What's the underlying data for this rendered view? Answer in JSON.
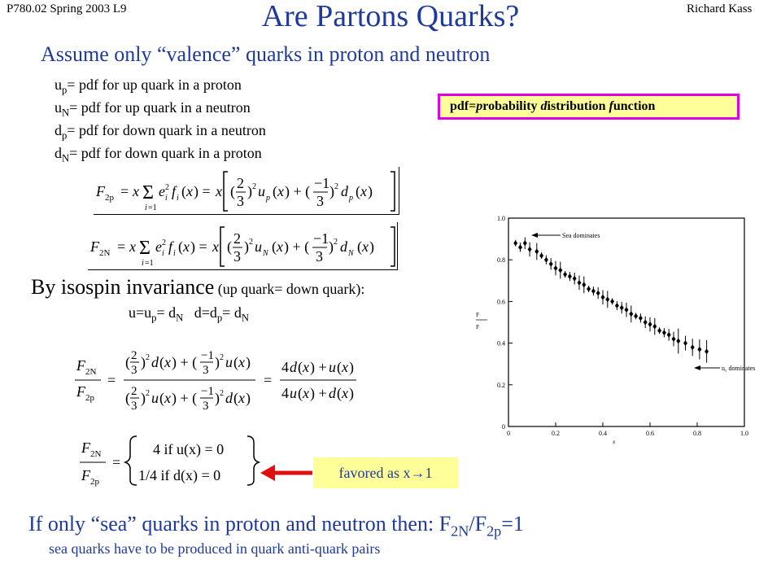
{
  "header": {
    "course": "P780.02 Spring 2003 L9",
    "author": "Richard Kass",
    "title": "Are Partons Quarks?"
  },
  "valence": {
    "heading": "Assume only “valence” quarks in proton and neutron",
    "defs": [
      {
        "sym": "u",
        "sub": "p",
        "text": "= pdf for up quark in a proton"
      },
      {
        "sym": "u",
        "sub": "N",
        "text": "= pdf for up quark in a neutron"
      },
      {
        "sym": "d",
        "sub": "p",
        "text": "= pdf for down quark in a neutron"
      },
      {
        "sym": "d",
        "sub": "N",
        "text": "= pdf for down quark in a proton"
      }
    ]
  },
  "pdf_note": {
    "prefix": "pdf=",
    "p": "p",
    "w1": "robability ",
    "d": "d",
    "w2": "istribution ",
    "f": "f",
    "w3": "unction"
  },
  "isospin": {
    "heading_main": "By isospin invariance",
    "heading_note": " (up quark= down quark):",
    "rel_u": "u=u",
    "rel_u_sub": "p",
    "rel_eq": "= d",
    "rel_eq_sub": "N",
    "rel_d": "d=d",
    "rel_d_sub": "p",
    "rel_d_eq": "= d",
    "rel_d_eq_sub": "N"
  },
  "favored": "favored as x→1",
  "sea": {
    "heading_pre": "If only “sea” quarks in proton and neutron then: F",
    "sub1": "2N",
    "mid": "/F",
    "sub2": "2p",
    "post": "=1",
    "note": "sea quarks have to be produced in quark anti-quark pairs"
  },
  "plot": {
    "annotation_top": "Sea dominates",
    "annotation_bottom": "dominates",
    "annotation_bottom_sym": "u",
    "annotation_bottom_sub": "v",
    "ylabel_num": "F",
    "ylabel_den": "F",
    "xlabel": "x",
    "yticks": [
      "1.0",
      "0.8",
      "0.6",
      "0.4",
      "0.2",
      "0"
    ],
    "xticks": [
      "0",
      "0.2",
      "0.4",
      "0.6",
      "0.8",
      "1.0"
    ]
  },
  "chart_data": {
    "type": "scatter",
    "xlabel": "x",
    "xlim": [
      0,
      1.0
    ],
    "ylim": [
      0,
      1.0
    ],
    "x": [
      0.03,
      0.05,
      0.07,
      0.09,
      0.12,
      0.14,
      0.16,
      0.18,
      0.2,
      0.22,
      0.24,
      0.26,
      0.28,
      0.3,
      0.32,
      0.34,
      0.36,
      0.38,
      0.4,
      0.42,
      0.44,
      0.46,
      0.48,
      0.5,
      0.52,
      0.54,
      0.56,
      0.58,
      0.6,
      0.62,
      0.64,
      0.66,
      0.68,
      0.7,
      0.72,
      0.75,
      0.78,
      0.81,
      0.84
    ],
    "y": [
      0.88,
      0.86,
      0.88,
      0.85,
      0.84,
      0.82,
      0.8,
      0.78,
      0.76,
      0.75,
      0.73,
      0.72,
      0.71,
      0.69,
      0.68,
      0.66,
      0.65,
      0.64,
      0.62,
      0.61,
      0.6,
      0.58,
      0.57,
      0.56,
      0.54,
      0.53,
      0.52,
      0.5,
      0.49,
      0.48,
      0.46,
      0.45,
      0.44,
      0.42,
      0.41,
      0.4,
      0.38,
      0.37,
      0.36
    ]
  }
}
